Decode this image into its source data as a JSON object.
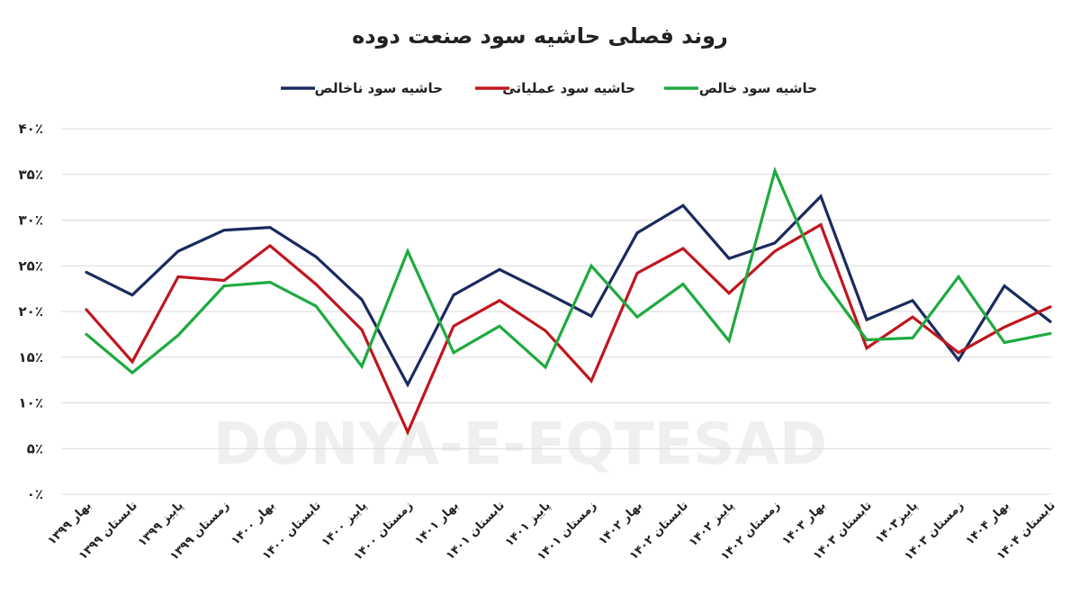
{
  "watermark": {
    "latin": "DONYA-E-EQTESAD"
  },
  "chart_data": {
    "type": "line",
    "title": "روند فصلی حاشیه سود صنعت دوده",
    "legend_position": "top",
    "grid": true,
    "ylim": [
      0,
      40
    ],
    "yticks": [
      "۴۰٪",
      "۳۵٪",
      "۳۰٪",
      "۲۵٪",
      "۲۰٪",
      "۱۵٪",
      "۱۰٪",
      "۵٪",
      "۰٪"
    ],
    "ytick_values": [
      40,
      35,
      30,
      25,
      20,
      15,
      10,
      5,
      0
    ],
    "categories": [
      "بهار ۱۳۹۹",
      "تابستان ۱۳۹۹",
      "پاییز ۱۳۹۹",
      "زمستان ۱۳۹۹",
      "بهار ۱۴۰۰",
      "تابستان ۱۴۰۰",
      "پاییز ۱۴۰۰",
      "زمستان ۱۴۰۰",
      "بهار ۱۴۰۱",
      "تابستان ۱۴۰۱",
      "پاییز ۱۴۰۱",
      "زمستان ۱۴۰۱",
      "بهار ۱۴۰۲",
      "تابستان ۱۴۰۲",
      "پاییز ۱۴۰۲",
      "زمستان ۱۴۰۲",
      "بهار ۱۴۰۳",
      "تابستان ۱۴۰۳",
      "پاییز۱۴۰۳",
      "زمستان ۱۴۰۳",
      "بهار ۱۴۰۴",
      "تابستان ۱۴۰۴"
    ],
    "series": [
      {
        "name": "حاشیه سود ناخالص",
        "color": "#1b2a5e",
        "values": [
          24.3,
          21.8,
          26.6,
          28.9,
          29.2,
          26.0,
          21.3,
          12.0,
          21.8,
          24.6,
          22.1,
          19.5,
          28.6,
          31.6,
          25.8,
          27.5,
          32.6,
          19.1,
          21.2,
          14.7,
          22.8,
          18.9
        ]
      },
      {
        "name": "حاشیه سود عملیاتی",
        "color": "#c0161e",
        "values": [
          20.2,
          14.5,
          23.8,
          23.4,
          27.2,
          23.0,
          18.0,
          6.8,
          18.4,
          21.2,
          17.9,
          12.4,
          24.2,
          26.9,
          22.0,
          26.6,
          29.5,
          16.0,
          19.4,
          15.5,
          18.3,
          20.5
        ]
      },
      {
        "name": "حاشیه سود خالص",
        "color": "#1faa3f",
        "values": [
          17.5,
          13.3,
          17.4,
          22.8,
          23.2,
          20.6,
          14.0,
          26.6,
          15.5,
          18.4,
          13.9,
          25.0,
          19.4,
          23.0,
          16.8,
          35.4,
          23.8,
          16.9,
          17.1,
          23.8,
          16.6,
          17.6
        ]
      }
    ]
  }
}
